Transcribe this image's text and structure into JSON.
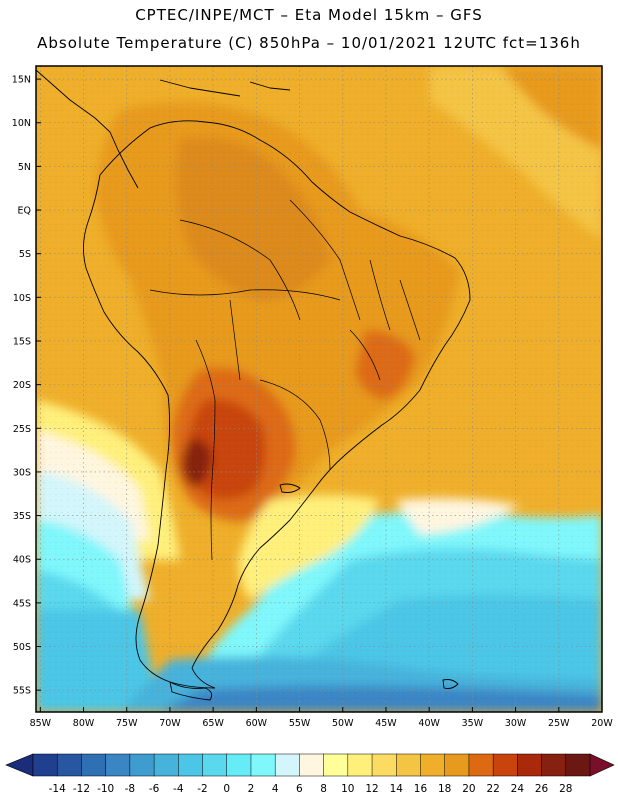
{
  "header": {
    "line1": "CPTEC/INPE/MCT –  Eta Model 15km – GFS",
    "line2": "Absolute Temperature (C) 850hPa – 10/01/2021 12UTC fct=136h"
  },
  "map": {
    "region": "South America",
    "variable": "Absolute Temperature (C)",
    "level": "850hPa",
    "lat_labels": [
      "15N",
      "10N",
      "5N",
      "EQ",
      "5S",
      "10S",
      "15S",
      "20S",
      "25S",
      "30S",
      "35S",
      "40S",
      "45S",
      "50S",
      "55S"
    ],
    "lon_labels": [
      "85W",
      "80W",
      "75W",
      "70W",
      "65W",
      "60W",
      "55W",
      "50W",
      "45W",
      "40W",
      "35W",
      "30W",
      "25W",
      "20W"
    ],
    "lat_values": [
      15,
      10,
      5,
      0,
      -5,
      -10,
      -15,
      -20,
      -25,
      -30,
      -35,
      -40,
      -45,
      -50,
      -55
    ],
    "lon_values": [
      -85,
      -80,
      -75,
      -70,
      -65,
      -60,
      -55,
      -50,
      -45,
      -40,
      -35,
      -30,
      -25,
      -20
    ],
    "extent": {
      "lon_min": -85.5,
      "lon_max": -20,
      "lat_min": -57.5,
      "lat_max": 16.5
    }
  },
  "colorbar": {
    "ticks": [
      "-14",
      "-12",
      "-10",
      "-8",
      "-6",
      "-4",
      "-2",
      "0",
      "2",
      "4",
      "6",
      "8",
      "10",
      "12",
      "14",
      "16",
      "18",
      "20",
      "22",
      "24",
      "26",
      "28"
    ],
    "colors": [
      "#1f3f8f",
      "#2856a0",
      "#2f6fb4",
      "#3a85c4",
      "#3f9ccf",
      "#47b2dc",
      "#4cc6e6",
      "#5ad8ee",
      "#66ecf6",
      "#7ff7fb",
      "#d2f6fb",
      "#fff6e0",
      "#ffff99",
      "#fff07c",
      "#fbdb62",
      "#f4c444",
      "#efaf2a",
      "#e79a1d",
      "#dd6a12",
      "#c8440c",
      "#a82a0a",
      "#862010",
      "#6b1813"
    ],
    "left_arrow_color": "#1a2c7a",
    "right_arrow_color": "#7a0f2a"
  },
  "palette": {
    "frame": "#000000",
    "coast": "#000000",
    "grid": "#8a8a8a"
  }
}
